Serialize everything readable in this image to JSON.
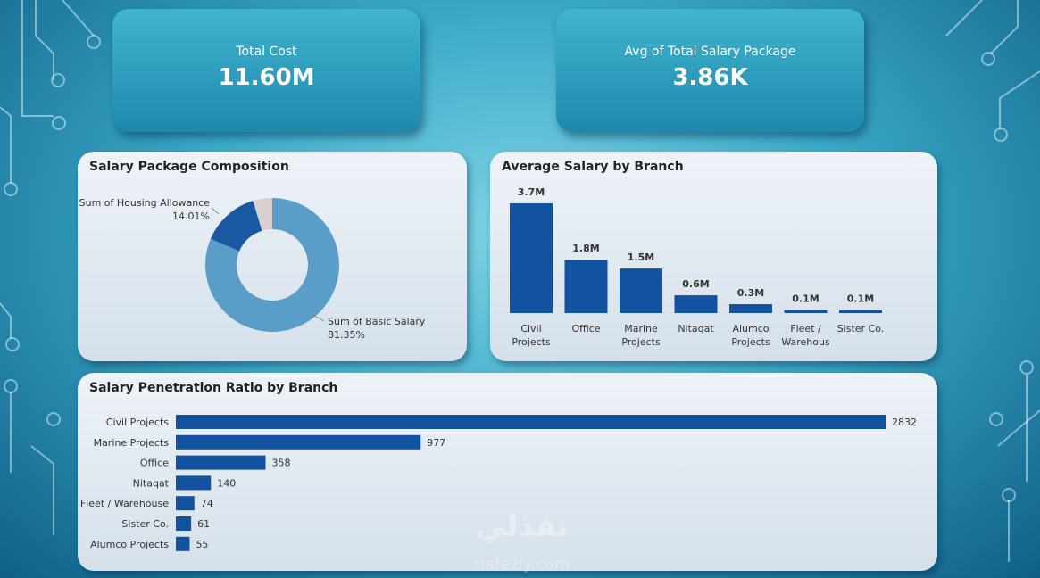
{
  "cards": [
    {
      "label": "Total Cost",
      "value": "11.60M"
    },
    {
      "label": "Avg of Total Salary Package",
      "value": "3.86K"
    }
  ],
  "watermark": {
    "arabic": "نفذلي",
    "latin": "nafezly.com"
  },
  "chart_data": [
    {
      "type": "donut",
      "title": "Salary Package Composition",
      "categories": [
        "Sum of Basic Salary",
        "Sum of Housing Allowance",
        null
      ],
      "values": [
        81.35,
        14.01,
        4.64
      ],
      "value_labels": [
        "81.35%",
        "14.01%",
        null
      ],
      "colors": [
        "#5b9dc9",
        "#1a58a3",
        "#d8cfcf"
      ]
    },
    {
      "type": "bar",
      "title": "Average Salary by Branch",
      "categories": [
        "Civil Projects",
        "Office",
        "Marine Projects",
        "Nitaqat",
        "Alumco Projects",
        "Fleet / Warehous",
        "Sister Co."
      ],
      "values": [
        3.7,
        1.8,
        1.5,
        0.6,
        0.3,
        0.1,
        0.1
      ],
      "value_labels": [
        "3.7M",
        "1.8M",
        "1.5M",
        "0.6M",
        "0.3M",
        "0.1M",
        "0.1M"
      ],
      "color": "#12529e"
    },
    {
      "type": "hbar",
      "title": "Salary Penetration Ratio by Branch",
      "categories": [
        "Civil Projects",
        "Marine Projects",
        "Office",
        "Nitaqat",
        "Fleet / Warehouse",
        "Sister Co.",
        "Alumco Projects"
      ],
      "values": [
        2832,
        977,
        358,
        140,
        74,
        61,
        55
      ],
      "color": "#12529e"
    }
  ]
}
